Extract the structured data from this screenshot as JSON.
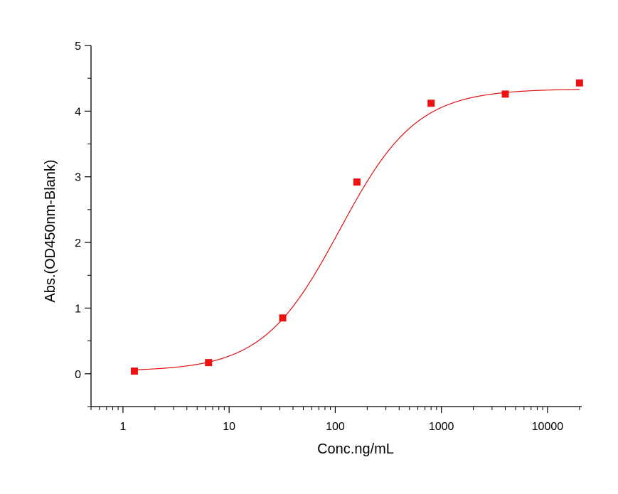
{
  "chart_data": {
    "type": "scatter",
    "title": "",
    "xlabel": "Conc.ng/mL",
    "ylabel": "Abs.(OD450nm-Blank)",
    "xscale": "log",
    "xlim": [
      0.5,
      21000
    ],
    "ylim": [
      -0.5,
      5
    ],
    "xticks": [
      1,
      10,
      100,
      1000,
      10000
    ],
    "xtick_labels": [
      "1",
      "10",
      "100",
      "1000",
      "10000"
    ],
    "yticks": [
      0,
      1,
      2,
      3,
      4,
      5
    ],
    "ytick_labels": [
      "0",
      "1",
      "2",
      "3",
      "4",
      "5"
    ],
    "grid": false,
    "marker_color": "#ee1111",
    "curve_color": "#dd1111",
    "series": [
      {
        "x": [
          1.28,
          6.4,
          32,
          160,
          800,
          4000,
          20000
        ],
        "y": [
          0.04,
          0.17,
          0.85,
          2.92,
          4.12,
          4.26,
          4.43
        ]
      }
    ],
    "fit": {
      "model": "4PL",
      "bottom": 0.04,
      "top": 4.34,
      "ec50": 110,
      "hill": 1.2
    }
  }
}
